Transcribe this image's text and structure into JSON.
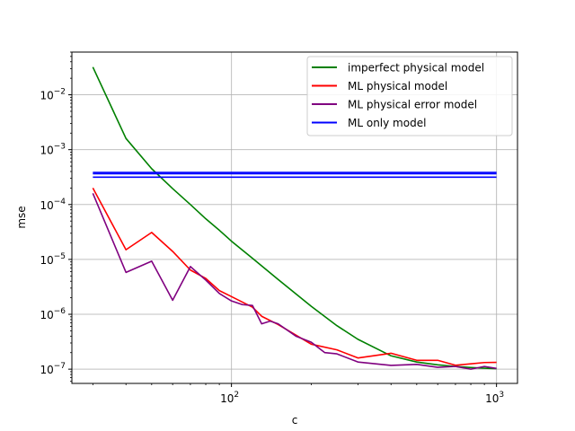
{
  "chart_data": {
    "type": "line",
    "title": "",
    "xlabel": "c",
    "ylabel": "mse",
    "xscale": "log",
    "yscale": "log",
    "xlim": [
      25,
      1200
    ],
    "ylim": [
      5.5e-08,
      0.06
    ],
    "grid": true,
    "legend_position": "top-right",
    "x_ticks": [
      {
        "value": 100,
        "mantissa": "10",
        "exp": "2"
      },
      {
        "value": 1000,
        "mantissa": "10",
        "exp": "3"
      }
    ],
    "y_ticks": [
      {
        "value": 1e-07,
        "mantissa": "10",
        "exp": "−7"
      },
      {
        "value": 1e-06,
        "mantissa": "10",
        "exp": "−6"
      },
      {
        "value": 1e-05,
        "mantissa": "10",
        "exp": "−5"
      },
      {
        "value": 0.0001,
        "mantissa": "10",
        "exp": "−4"
      },
      {
        "value": 0.001,
        "mantissa": "10",
        "exp": "−3"
      },
      {
        "value": 0.01,
        "mantissa": "10",
        "exp": "−2"
      }
    ],
    "series": [
      {
        "name": "imperfect physical model",
        "color": "#008000",
        "x": [
          30,
          40,
          50,
          60,
          70,
          80,
          90,
          100,
          120,
          150,
          200,
          250,
          300,
          400,
          500,
          600,
          700,
          800,
          900,
          1000
        ],
        "y": [
          0.032,
          0.0016,
          0.00045,
          0.000195,
          0.0001,
          5.5e-05,
          3.4e-05,
          2.15e-05,
          1.05e-05,
          4.3e-06,
          1.4e-06,
          6.2e-07,
          3.5e-07,
          1.75e-07,
          1.35e-07,
          1.2e-07,
          1.12e-07,
          1.07e-07,
          1.04e-07,
          1.02e-07
        ]
      },
      {
        "name": "ML physical model",
        "color": "#ff0000",
        "x": [
          30,
          40,
          50,
          60,
          70,
          80,
          90,
          100,
          120,
          130,
          150,
          200,
          250,
          300,
          400,
          500,
          600,
          700,
          800,
          900,
          1000
        ],
        "y": [
          0.0002,
          1.5e-05,
          3.1e-05,
          1.4e-05,
          6.4e-06,
          4.5e-06,
          2.7e-06,
          2.1e-06,
          1.35e-06,
          9.2e-07,
          6.5e-07,
          2.85e-07,
          2.25e-07,
          1.6e-07,
          1.95e-07,
          1.45e-07,
          1.45e-07,
          1.18e-07,
          1.25e-07,
          1.32e-07,
          1.33e-07
        ]
      },
      {
        "name": "ML physical error model",
        "color": "#800080",
        "x": [
          30,
          40,
          50,
          60,
          70,
          80,
          90,
          100,
          110,
          120,
          130,
          140,
          150,
          175,
          200,
          225,
          250,
          300,
          400,
          500,
          600,
          700,
          800,
          900,
          1000
        ],
        "y": [
          0.00016,
          5.8e-06,
          9.3e-06,
          1.8e-06,
          7.4e-06,
          4.2e-06,
          2.4e-06,
          1.75e-06,
          1.5e-06,
          1.45e-06,
          6.7e-07,
          7.5e-07,
          6.7e-07,
          4e-07,
          3.1e-07,
          2e-07,
          1.9e-07,
          1.35e-07,
          1.17e-07,
          1.22e-07,
          1.08e-07,
          1.12e-07,
          1e-07,
          1.12e-07,
          1.03e-07
        ]
      },
      {
        "name": "ML only model",
        "color": "#0000ff",
        "x": [
          30,
          1000
        ],
        "y": [
          0.000385,
          0.000385
        ],
        "extra_levels": [
          0.000365,
          0.000315
        ]
      }
    ]
  }
}
